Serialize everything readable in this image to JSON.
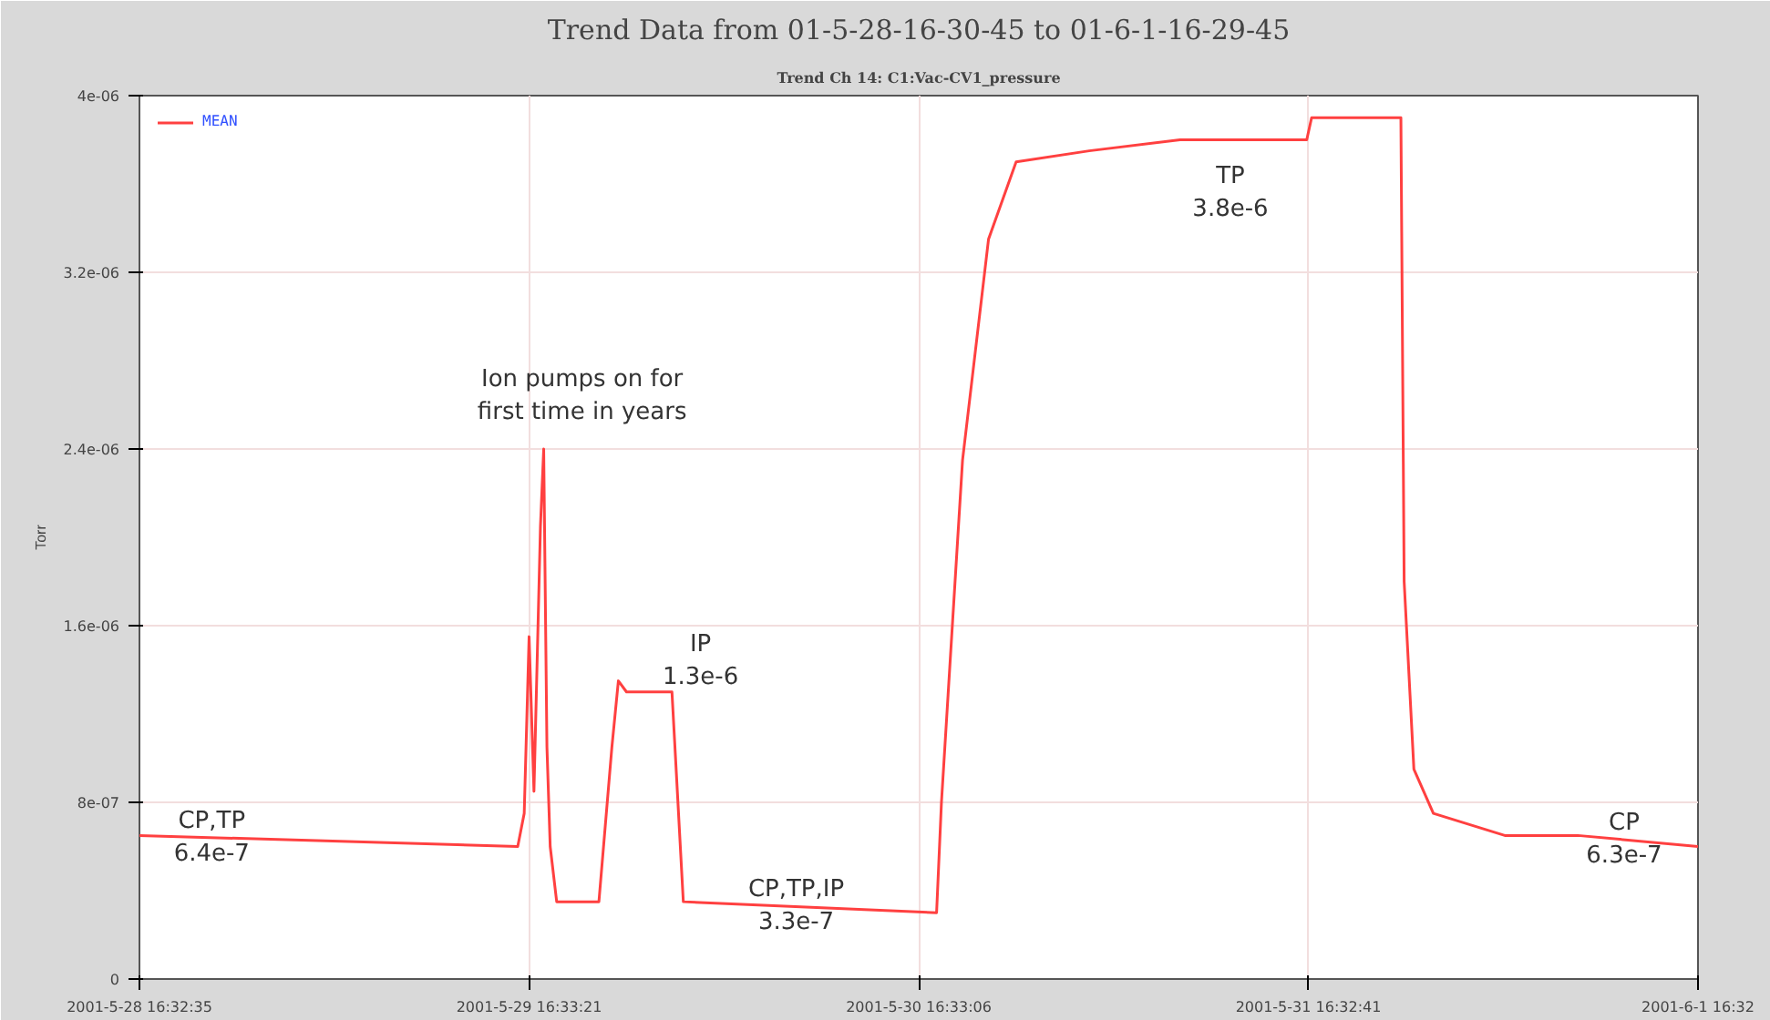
{
  "chart_data": {
    "type": "line",
    "title": "Trend Data from 01-5-28-16-30-45 to 01-6-1-16-29-45",
    "subtitle": "Trend Ch 14: C1:Vac-CV1_pressure",
    "ylabel": "Torr",
    "x": [
      "2001-05-28T16:33",
      "2001-05-29T15:51",
      "2001-05-29T16:15",
      "2001-05-29T16:33",
      "2001-05-29T16:51",
      "2001-05-29T17:15",
      "2001-05-29T17:27",
      "2001-05-29T17:39",
      "2001-05-29T17:51",
      "2001-05-29T18:15",
      "2001-05-29T20:51",
      "2001-05-29T21:39",
      "2001-05-29T22:03",
      "2001-05-29T22:33",
      "2001-05-30T01:21",
      "2001-05-30T02:03",
      "2001-05-30T17:39",
      "2001-05-30T17:57",
      "2001-05-30T19:15",
      "2001-05-30T20:51",
      "2001-05-30T22:33",
      "2001-05-31T03:03",
      "2001-05-31T08:39",
      "2001-05-31T12:39",
      "2001-05-31T16:27",
      "2001-05-31T16:45",
      "2001-05-31T18:39",
      "2001-05-31T20:51",
      "2001-05-31T22:15",
      "2001-05-31T22:27",
      "2001-05-31T23:03",
      "2001-06-01T00:15",
      "2001-06-01T04:39",
      "2001-06-01T09:09",
      "2001-06-01T16:33"
    ],
    "series": [
      {
        "name": "MEAN",
        "color": "#ff4040",
        "values": [
          6.5e-07,
          6e-07,
          7.5e-07,
          1.55e-06,
          8.5e-07,
          2.05e-06,
          2.4e-06,
          1.05e-06,
          6e-07,
          3.5e-07,
          3.5e-07,
          1.05e-06,
          1.35e-06,
          1.3e-06,
          1.3e-06,
          3.5e-07,
          3e-07,
          8e-07,
          2.35e-06,
          3.35e-06,
          3.7e-06,
          3.75e-06,
          3.8e-06,
          3.8e-06,
          3.8e-06,
          3.9e-06,
          3.9e-06,
          3.9e-06,
          3.9e-06,
          1.8e-06,
          9.5e-07,
          7.5e-07,
          6.5e-07,
          6.5e-07,
          6e-07
        ]
      }
    ],
    "xlim": [
      "2001-05-28T16:33",
      "2001-06-01T16:33"
    ],
    "xticks": [
      {
        "value": "2001-05-28T16:33",
        "label": "2001-5-28 16:32:35"
      },
      {
        "value": "2001-05-29T16:33",
        "label": "2001-5-29 16:33:21"
      },
      {
        "value": "2001-05-30T16:33",
        "label": "2001-5-30 16:33:06"
      },
      {
        "value": "2001-05-31T16:33",
        "label": "2001-5-31 16:32:41"
      },
      {
        "value": "2001-06-01T16:33",
        "label": "2001-6-1 16:32"
      }
    ],
    "ylim": [
      0,
      4e-06
    ],
    "yticks": [
      {
        "value": 0,
        "label": "0"
      },
      {
        "value": 8e-07,
        "label": "8e-07"
      },
      {
        "value": 1.6e-06,
        "label": "1.6e-06"
      },
      {
        "value": 2.4e-06,
        "label": "2.4e-06"
      },
      {
        "value": 3.2e-06,
        "label": "3.2e-06"
      },
      {
        "value": 4e-06,
        "label": "4e-06"
      }
    ],
    "grid": true,
    "legend": "top left",
    "marker": "none",
    "line_style": "solid",
    "annotations": [
      "Ion pumps on for\nfirst time in years",
      {
        "text": "CP,TP\n6.4e-7",
        "x": "2001-05-28T21:00",
        "y": 6.4e-07
      },
      "IP\n1.3e-6",
      {
        "text": "CP,TP,IP\n3.3e-7",
        "x": "2001-05-30T09:00",
        "y": 3.3e-07
      },
      "TP\n3.8e-6",
      {
        "text": "CP\n6.3e-7",
        "x": "2001-06-01T12:00",
        "y": 6.3e-07
      }
    ]
  }
}
